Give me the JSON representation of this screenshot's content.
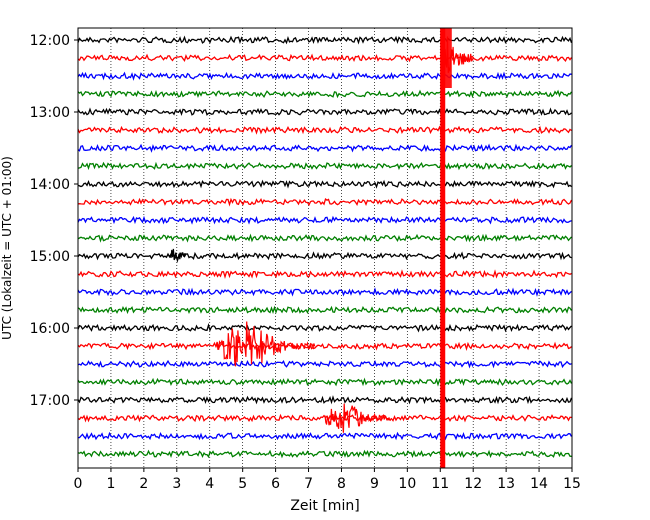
{
  "chart_data": {
    "type": "line",
    "title": "",
    "xlabel": "Zeit  [min]",
    "ylabel": "UTC (Lokalzeit = UTC + 01:00)",
    "xlim": [
      0,
      15
    ],
    "x_ticks": [
      0,
      1,
      2,
      3,
      4,
      5,
      6,
      7,
      8,
      9,
      10,
      11,
      12,
      13,
      14,
      15
    ],
    "x_tick_labels": [
      "0",
      "1",
      "2",
      "3",
      "4",
      "5",
      "6",
      "7",
      "8",
      "9",
      "10",
      "11",
      "12",
      "13",
      "14",
      "15"
    ],
    "y_tick_labels": [
      "12:00",
      "13:00",
      "14:00",
      "15:00",
      "16:00",
      "17:00"
    ],
    "trace_minutes_per_line": 15,
    "trace_colors": [
      "#000000",
      "#ff0000",
      "#0000ff",
      "#008000"
    ],
    "grid": "vertical dotted",
    "traces": [
      {
        "start": "12:00",
        "color": "#000000"
      },
      {
        "start": "12:15",
        "color": "#ff0000"
      },
      {
        "start": "12:30",
        "color": "#0000ff"
      },
      {
        "start": "12:45",
        "color": "#008000"
      },
      {
        "start": "13:00",
        "color": "#000000"
      },
      {
        "start": "13:15",
        "color": "#ff0000"
      },
      {
        "start": "13:30",
        "color": "#0000ff"
      },
      {
        "start": "13:45",
        "color": "#008000"
      },
      {
        "start": "14:00",
        "color": "#000000"
      },
      {
        "start": "14:15",
        "color": "#ff0000"
      },
      {
        "start": "14:30",
        "color": "#0000ff"
      },
      {
        "start": "14:45",
        "color": "#008000"
      },
      {
        "start": "15:00",
        "color": "#000000"
      },
      {
        "start": "15:15",
        "color": "#ff0000"
      },
      {
        "start": "15:30",
        "color": "#0000ff"
      },
      {
        "start": "15:45",
        "color": "#008000"
      },
      {
        "start": "16:00",
        "color": "#000000"
      },
      {
        "start": "16:15",
        "color": "#ff0000"
      },
      {
        "start": "16:30",
        "color": "#0000ff"
      },
      {
        "start": "16:45",
        "color": "#008000"
      },
      {
        "start": "17:00",
        "color": "#000000"
      },
      {
        "start": "17:15",
        "color": "#ff0000"
      },
      {
        "start": "17:30",
        "color": "#0000ff"
      },
      {
        "start": "17:45",
        "color": "#008000"
      }
    ],
    "events": [
      {
        "trace_start": "12:15",
        "x_start": 11.0,
        "x_end": 12.0,
        "amplitude": "clipped"
      },
      {
        "trace_start": "15:00",
        "x_start": 2.8,
        "x_end": 3.3,
        "amplitude": "small"
      },
      {
        "trace_start": "16:15",
        "x_start": 4.2,
        "x_end": 7.2,
        "amplitude": "large"
      },
      {
        "trace_start": "17:15",
        "x_start": 7.5,
        "x_end": 9.5,
        "amplitude": "medium"
      }
    ]
  }
}
